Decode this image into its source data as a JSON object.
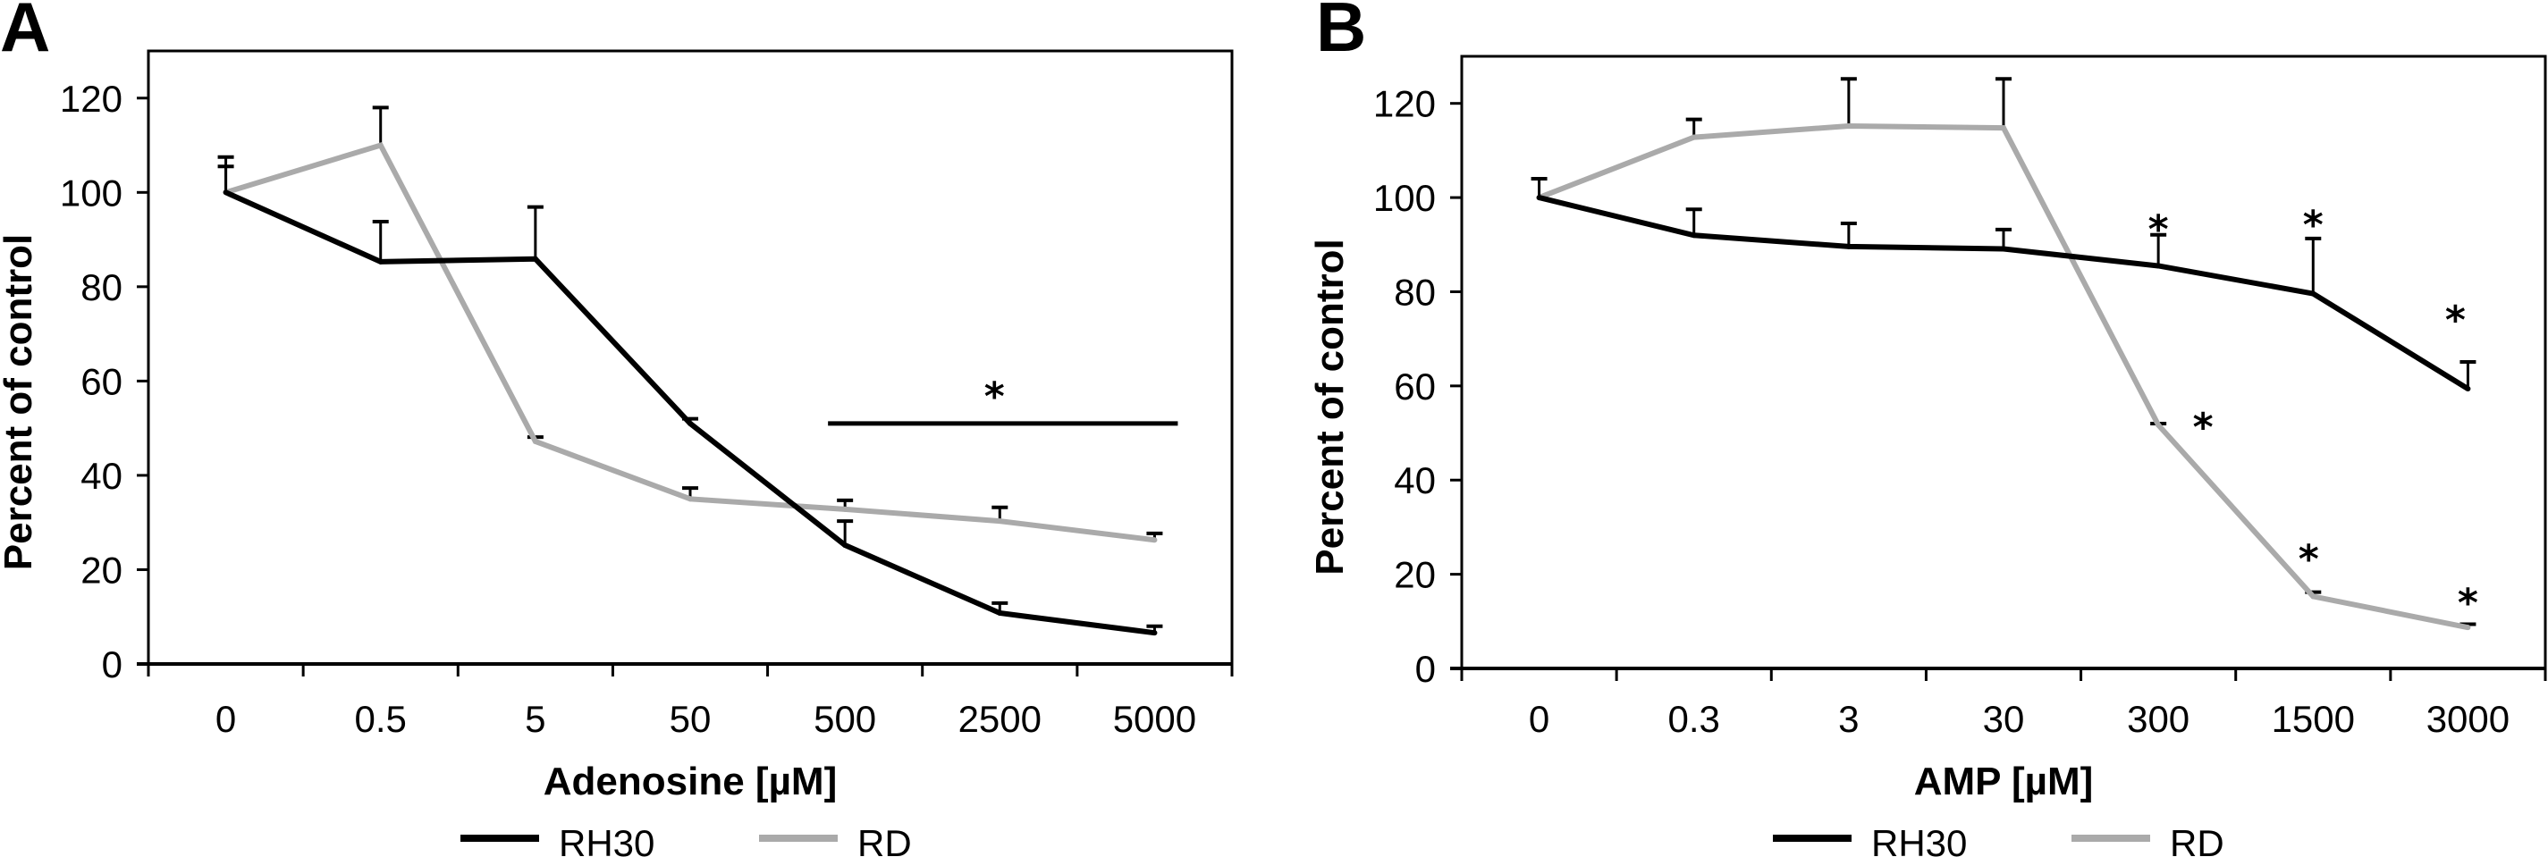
{
  "chart_data": [
    {
      "panel_label": "A",
      "type": "line",
      "title": "",
      "xlabel": "Adenosine [µM]",
      "ylabel": "Percent of control",
      "categories": [
        "0",
        "0.5",
        "5",
        "50",
        "500",
        "2500",
        "5000"
      ],
      "ylim": [
        0,
        130
      ],
      "yticks": [
        0,
        20,
        40,
        60,
        80,
        100,
        120
      ],
      "ytick_labels": [
        "0",
        "20",
        "40",
        "60",
        "80",
        "100",
        "120"
      ],
      "grid": false,
      "legend_position": "bottom-center",
      "series": [
        {
          "name": "RH30",
          "color": "#000000",
          "values": [
            100,
            85.3,
            85.9,
            51,
            25.2,
            10.8,
            6.6
          ],
          "error_upper": [
            107.5,
            93.8,
            96.9,
            52,
            30.3,
            12.9,
            8.0
          ]
        },
        {
          "name": "RD",
          "color": "#aaaaaa",
          "values": [
            100,
            110,
            47.2,
            35,
            32.8,
            30.3,
            26.3
          ],
          "error_upper": [
            105.5,
            118,
            48.1,
            37.3,
            34.7,
            33.2,
            27.7
          ]
        }
      ],
      "annotations": [
        {
          "type": "significance-bar",
          "text": "*",
          "from_category": "500",
          "to_category": "5000",
          "y": 51,
          "label_y": 60
        }
      ]
    },
    {
      "panel_label": "B",
      "type": "line",
      "title": "",
      "xlabel": "AMP [µM]",
      "ylabel": "Percent of control",
      "categories": [
        "0",
        "0.3",
        "3",
        "30",
        "300",
        "1500",
        "3000"
      ],
      "ylim": [
        0,
        130
      ],
      "yticks": [
        0,
        20,
        40,
        60,
        80,
        100,
        120
      ],
      "ytick_labels": [
        "0",
        "20",
        "40",
        "60",
        "80",
        "100",
        "120"
      ],
      "grid": false,
      "legend_position": "bottom-center",
      "series": [
        {
          "name": "RH30",
          "color": "#000000",
          "values": [
            100,
            92,
            89.6,
            89.1,
            85.5,
            79.6,
            59.4
          ],
          "error_upper": [
            104,
            97.5,
            94.5,
            93.2,
            92.1,
            91.3,
            65.1
          ]
        },
        {
          "name": "RD",
          "color": "#aaaaaa",
          "values": [
            100,
            112.8,
            115.2,
            114.8,
            51.7,
            15.3,
            8.7
          ],
          "error_upper": [
            null,
            116.6,
            125.2,
            125.2,
            52,
            16.2,
            9.4
          ]
        }
      ],
      "annotations": [
        {
          "type": "asterisk",
          "text": "*",
          "series": "RH30",
          "category": "300",
          "y": 96.5
        },
        {
          "type": "asterisk",
          "text": "*",
          "series": "RH30",
          "category": "1500",
          "y": 97.5
        },
        {
          "type": "asterisk",
          "text": "*",
          "series": "RH30",
          "category": "3000",
          "y": 77.2
        },
        {
          "type": "asterisk",
          "text": "*",
          "series": "RD",
          "category": "300",
          "y": 54.5
        },
        {
          "type": "asterisk",
          "text": "*",
          "series": "RD",
          "category": "1500",
          "y": 26.5
        },
        {
          "type": "asterisk",
          "text": "*",
          "series": "RD",
          "category": "3000",
          "y": 17.2
        }
      ]
    }
  ]
}
